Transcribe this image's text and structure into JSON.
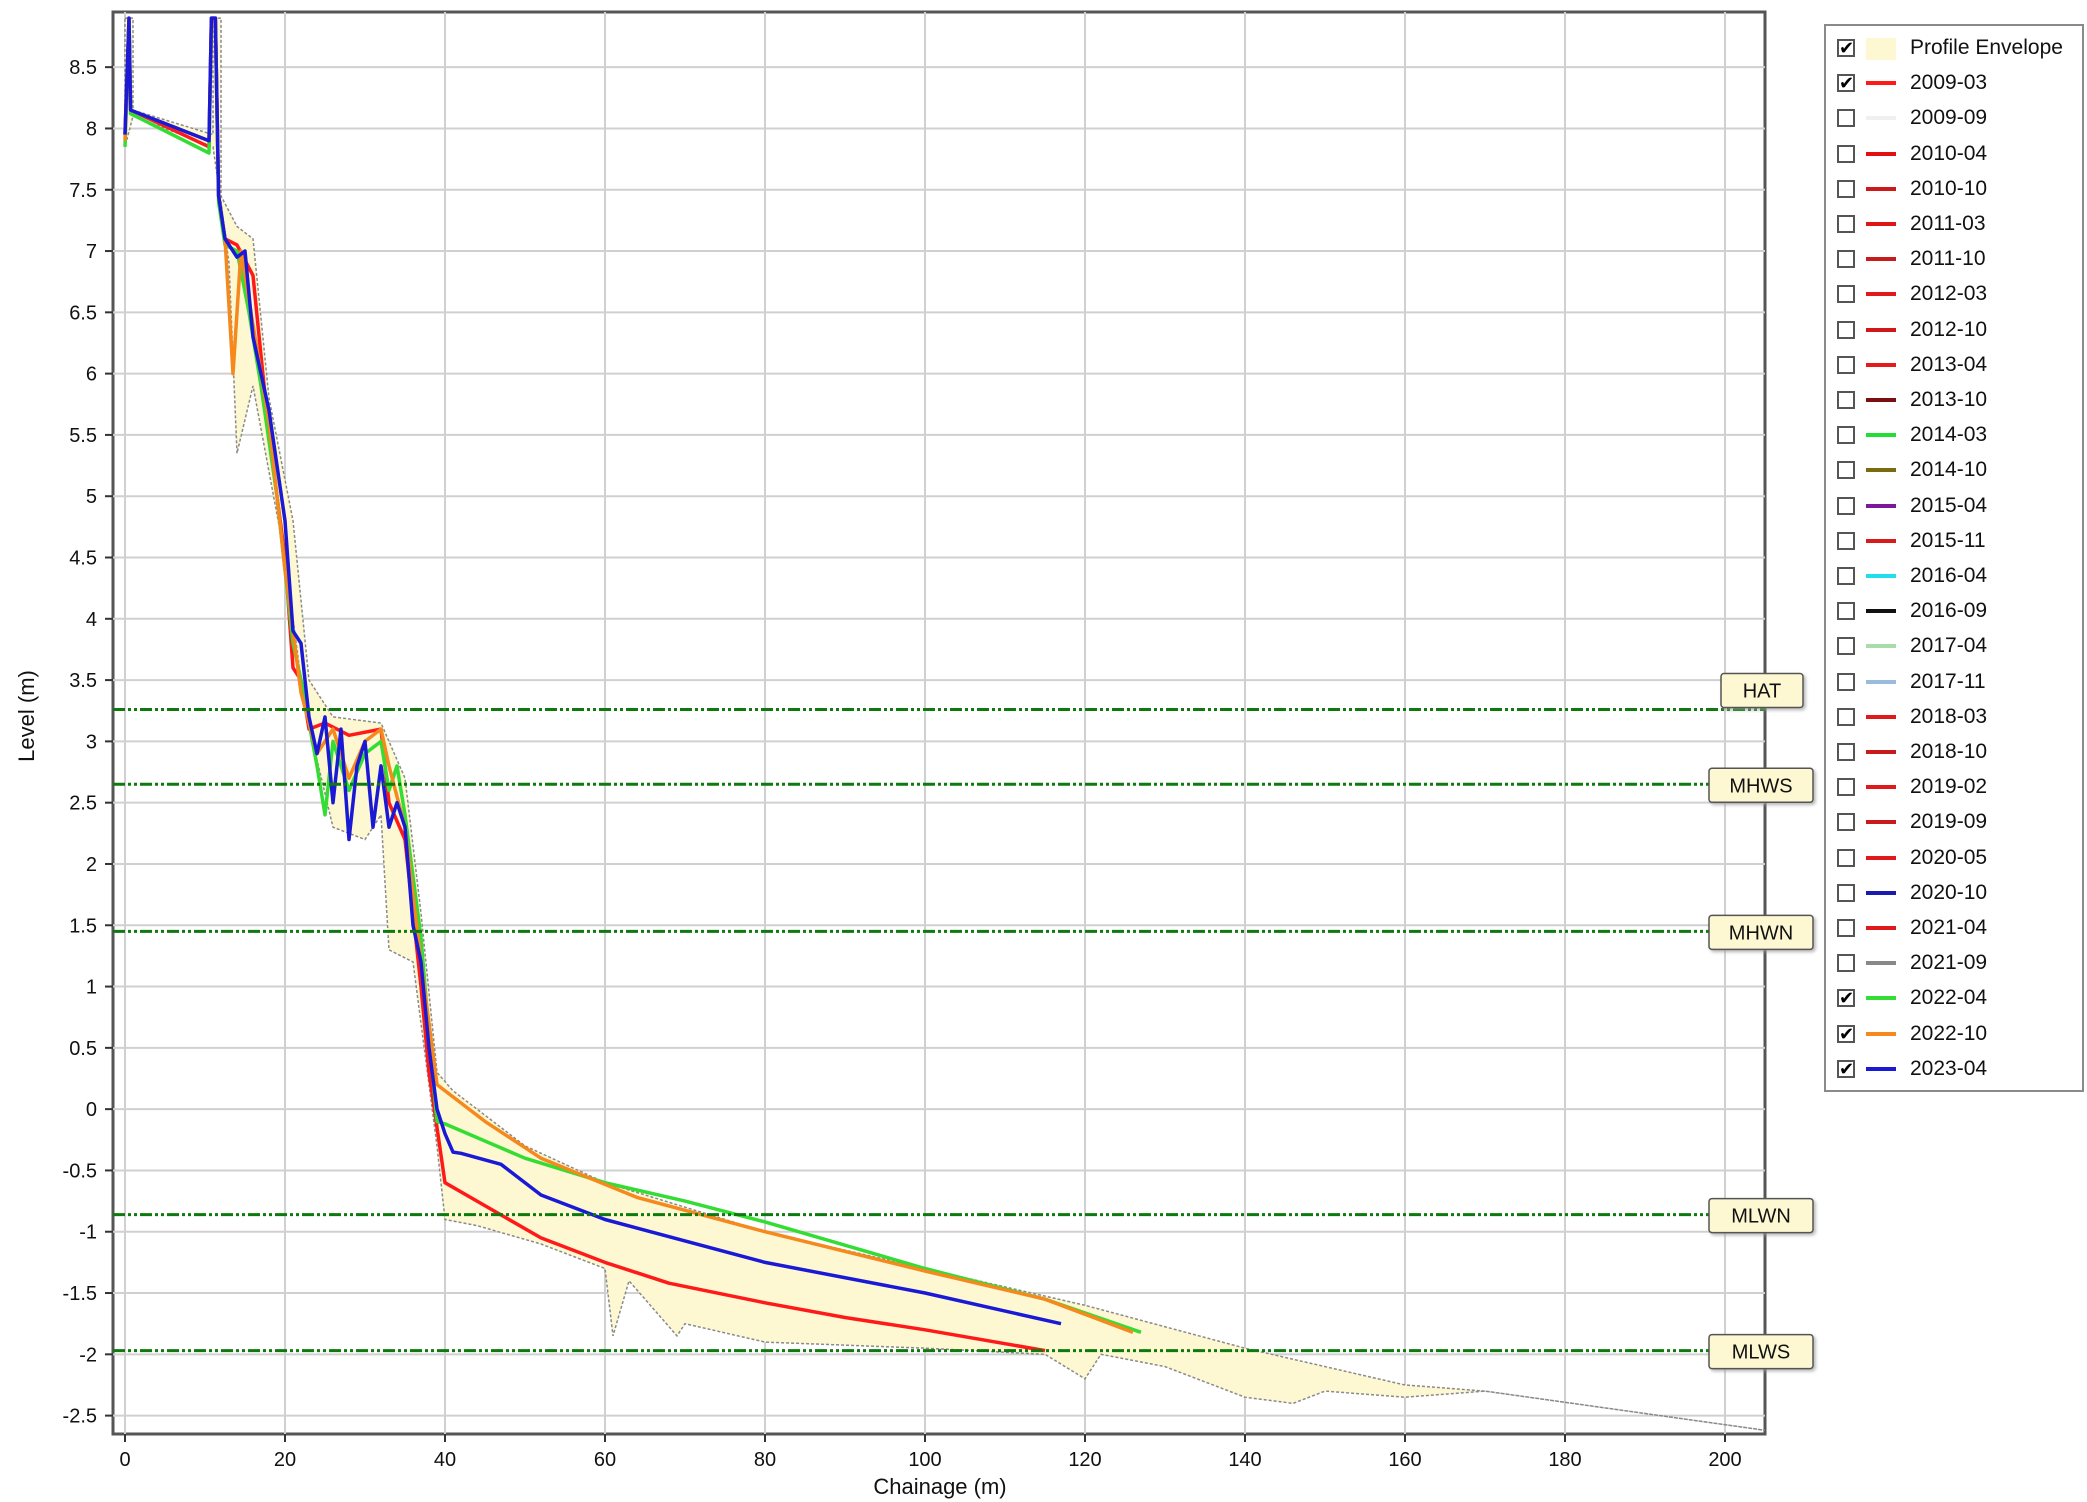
{
  "chart_data": {
    "type": "line",
    "title": "",
    "xlabel": "Chainage (m)",
    "ylabel": "Level (m)",
    "xlim": [
      -1.5,
      205
    ],
    "ylim": [
      -2.65,
      8.95
    ],
    "x_ticks": [
      0,
      20,
      40,
      60,
      80,
      100,
      120,
      140,
      160,
      180,
      200
    ],
    "y_ticks": [
      -2.5,
      -2,
      -1.5,
      -1,
      -0.5,
      0,
      0.5,
      1,
      1.5,
      2,
      2.5,
      3,
      3.5,
      4,
      4.5,
      5,
      5.5,
      6,
      6.5,
      7,
      7.5,
      8,
      8.5
    ],
    "grid": true,
    "legend_position": "right",
    "tide_lines": [
      {
        "name": "HAT",
        "level": 3.26
      },
      {
        "name": "MHWS",
        "level": 2.65
      },
      {
        "name": "MHWN",
        "level": 1.45
      },
      {
        "name": "MLWN",
        "level": -0.86
      },
      {
        "name": "MLWS",
        "level": -1.97
      }
    ],
    "envelope": {
      "name": "Profile Envelope",
      "upper": [
        [
          0,
          8.9
        ],
        [
          1,
          8.9
        ],
        [
          1,
          8.15
        ],
        [
          11,
          7.95
        ],
        [
          11,
          8.9
        ],
        [
          12,
          8.9
        ],
        [
          12,
          7.45
        ],
        [
          14,
          7.2
        ],
        [
          16,
          7.1
        ],
        [
          18,
          5.8
        ],
        [
          21,
          4.8
        ],
        [
          23,
          3.5
        ],
        [
          26,
          3.2
        ],
        [
          32,
          3.15
        ],
        [
          35,
          2.7
        ],
        [
          37,
          1.6
        ],
        [
          39,
          0.3
        ],
        [
          41,
          0.15
        ],
        [
          50,
          -0.3
        ],
        [
          60,
          -0.6
        ],
        [
          70,
          -0.8
        ],
        [
          80,
          -1.0
        ],
        [
          100,
          -1.3
        ],
        [
          120,
          -1.6
        ],
        [
          140,
          -1.95
        ],
        [
          160,
          -2.25
        ],
        [
          170,
          -2.3
        ],
        [
          205,
          -2.62
        ]
      ],
      "lower": [
        [
          205,
          -2.62
        ],
        [
          170,
          -2.3
        ],
        [
          160,
          -2.35
        ],
        [
          150,
          -2.3
        ],
        [
          146,
          -2.4
        ],
        [
          140,
          -2.35
        ],
        [
          130,
          -2.1
        ],
        [
          122,
          -2.0
        ],
        [
          120,
          -2.2
        ],
        [
          115,
          -2.0
        ],
        [
          100,
          -1.95
        ],
        [
          80,
          -1.9
        ],
        [
          70,
          -1.75
        ],
        [
          69,
          -1.85
        ],
        [
          63,
          -1.4
        ],
        [
          61,
          -1.85
        ],
        [
          60,
          -1.3
        ],
        [
          52,
          -1.1
        ],
        [
          44,
          -0.95
        ],
        [
          40,
          -0.9
        ],
        [
          39,
          -0.3
        ],
        [
          36,
          1.2
        ],
        [
          33,
          1.3
        ],
        [
          32,
          2.4
        ],
        [
          30,
          2.2
        ],
        [
          26,
          2.3
        ],
        [
          24,
          2.85
        ],
        [
          22,
          3.5
        ],
        [
          20,
          4.5
        ],
        [
          16,
          5.9
        ],
        [
          14,
          5.35
        ],
        [
          13,
          6.9
        ],
        [
          12,
          7.4
        ],
        [
          11,
          7.85
        ],
        [
          1,
          8.1
        ],
        [
          0,
          7.85
        ]
      ]
    },
    "series": [
      {
        "name": "2009-03",
        "color": "#ff1a1a",
        "points": [
          [
            0,
            7.95
          ],
          [
            0.5,
            8.9
          ],
          [
            0.7,
            8.15
          ],
          [
            10.5,
            7.85
          ],
          [
            10.8,
            8.9
          ],
          [
            11.3,
            8.9
          ],
          [
            11.7,
            7.45
          ],
          [
            12.5,
            7.1
          ],
          [
            14,
            7.05
          ],
          [
            16,
            6.8
          ],
          [
            18,
            5.5
          ],
          [
            20,
            4.5
          ],
          [
            21,
            3.6
          ],
          [
            22,
            3.5
          ],
          [
            23,
            3.1
          ],
          [
            25,
            3.15
          ],
          [
            28,
            3.05
          ],
          [
            32,
            3.1
          ],
          [
            33,
            2.5
          ],
          [
            35,
            2.2
          ],
          [
            37,
            1.0
          ],
          [
            38,
            0.3
          ],
          [
            40,
            -0.6
          ],
          [
            44,
            -0.75
          ],
          [
            52,
            -1.05
          ],
          [
            60,
            -1.25
          ],
          [
            68,
            -1.42
          ],
          [
            80,
            -1.58
          ],
          [
            90,
            -1.7
          ],
          [
            100,
            -1.8
          ],
          [
            115,
            -1.97
          ]
        ]
      },
      {
        "name": "2022-04",
        "color": "#33dd33",
        "points": [
          [
            0,
            7.85
          ],
          [
            0.5,
            8.85
          ],
          [
            0.7,
            8.12
          ],
          [
            10.5,
            7.8
          ],
          [
            10.8,
            8.85
          ],
          [
            11.3,
            8.85
          ],
          [
            11.7,
            7.4
          ],
          [
            12.5,
            7.05
          ],
          [
            14,
            7.0
          ],
          [
            15.5,
            6.5
          ],
          [
            17,
            5.9
          ],
          [
            19,
            5.0
          ],
          [
            21,
            3.8
          ],
          [
            22,
            3.5
          ],
          [
            24,
            2.8
          ],
          [
            25,
            2.4
          ],
          [
            26,
            3.0
          ],
          [
            28,
            2.6
          ],
          [
            30,
            2.9
          ],
          [
            32,
            3.0
          ],
          [
            33,
            2.6
          ],
          [
            34,
            2.8
          ],
          [
            35,
            2.4
          ],
          [
            37,
            1.4
          ],
          [
            38,
            0.6
          ],
          [
            39,
            -0.1
          ],
          [
            40,
            -0.12
          ],
          [
            50,
            -0.4
          ],
          [
            60,
            -0.6
          ],
          [
            70,
            -0.75
          ],
          [
            80,
            -0.92
          ],
          [
            100,
            -1.3
          ],
          [
            115,
            -1.55
          ],
          [
            127,
            -1.82
          ]
        ]
      },
      {
        "name": "2022-10",
        "color": "#f5891e",
        "points": [
          [
            0,
            7.9
          ],
          [
            0.5,
            8.85
          ],
          [
            0.7,
            8.15
          ],
          [
            10.5,
            7.9
          ],
          [
            10.8,
            8.85
          ],
          [
            11.3,
            8.85
          ],
          [
            11.7,
            7.45
          ],
          [
            12.5,
            7.1
          ],
          [
            13.5,
            6.0
          ],
          [
            14.5,
            7.0
          ],
          [
            16,
            6.4
          ],
          [
            18,
            5.6
          ],
          [
            20,
            4.4
          ],
          [
            21,
            3.9
          ],
          [
            22,
            3.4
          ],
          [
            24,
            2.9
          ],
          [
            26,
            3.1
          ],
          [
            28,
            2.7
          ],
          [
            30,
            3.0
          ],
          [
            32,
            3.1
          ],
          [
            33,
            2.8
          ],
          [
            35,
            2.3
          ],
          [
            37,
            1.2
          ],
          [
            39,
            0.2
          ],
          [
            40,
            0.15
          ],
          [
            45,
            -0.1
          ],
          [
            52,
            -0.4
          ],
          [
            64,
            -0.72
          ],
          [
            80,
            -1.0
          ],
          [
            100,
            -1.32
          ],
          [
            115,
            -1.55
          ],
          [
            126,
            -1.82
          ]
        ]
      },
      {
        "name": "2023-04",
        "color": "#1a1ad6",
        "points": [
          [
            0,
            7.95
          ],
          [
            0.5,
            8.9
          ],
          [
            0.7,
            8.15
          ],
          [
            10.5,
            7.9
          ],
          [
            10.8,
            8.9
          ],
          [
            11.3,
            8.9
          ],
          [
            11.7,
            7.45
          ],
          [
            12.5,
            7.1
          ],
          [
            14,
            6.95
          ],
          [
            15,
            7.0
          ],
          [
            16,
            6.3
          ],
          [
            18,
            5.7
          ],
          [
            20,
            4.8
          ],
          [
            21,
            3.9
          ],
          [
            22,
            3.8
          ],
          [
            23,
            3.2
          ],
          [
            24,
            2.9
          ],
          [
            25,
            3.2
          ],
          [
            26,
            2.5
          ],
          [
            27,
            3.1
          ],
          [
            28,
            2.2
          ],
          [
            29,
            2.8
          ],
          [
            30,
            3.0
          ],
          [
            31,
            2.3
          ],
          [
            32,
            2.8
          ],
          [
            33,
            2.3
          ],
          [
            34,
            2.5
          ],
          [
            35,
            2.3
          ],
          [
            36,
            1.5
          ],
          [
            37,
            1.2
          ],
          [
            38,
            0.5
          ],
          [
            39,
            0.0
          ],
          [
            40,
            -0.2
          ],
          [
            41,
            -0.35
          ],
          [
            42,
            -0.36
          ],
          [
            47,
            -0.45
          ],
          [
            52,
            -0.7
          ],
          [
            60,
            -0.9
          ],
          [
            80,
            -1.25
          ],
          [
            100,
            -1.5
          ],
          [
            117,
            -1.75
          ]
        ]
      }
    ],
    "legend": [
      {
        "label": "Profile Envelope",
        "checked": true,
        "color": "#fdf8d2",
        "kind": "area"
      },
      {
        "label": "2009-03",
        "checked": true,
        "color": "#ff1a1a"
      },
      {
        "label": "2009-09",
        "checked": false,
        "color": "#f0f0f0"
      },
      {
        "label": "2010-04",
        "checked": false,
        "color": "#e01010"
      },
      {
        "label": "2010-10",
        "checked": false,
        "color": "#cc1a1a"
      },
      {
        "label": "2011-03",
        "checked": false,
        "color": "#e01515"
      },
      {
        "label": "2011-10",
        "checked": false,
        "color": "#c81c1c"
      },
      {
        "label": "2012-03",
        "checked": false,
        "color": "#e01a1a"
      },
      {
        "label": "2012-10",
        "checked": false,
        "color": "#d01818"
      },
      {
        "label": "2013-04",
        "checked": false,
        "color": "#e51a1a"
      },
      {
        "label": "2013-10",
        "checked": false,
        "color": "#7a1010"
      },
      {
        "label": "2014-03",
        "checked": false,
        "color": "#22dd33"
      },
      {
        "label": "2014-10",
        "checked": false,
        "color": "#7a6a10"
      },
      {
        "label": "2015-04",
        "checked": false,
        "color": "#7a1a9a"
      },
      {
        "label": "2015-11",
        "checked": false,
        "color": "#d81a1a"
      },
      {
        "label": "2016-04",
        "checked": false,
        "color": "#22ddee"
      },
      {
        "label": "2016-09",
        "checked": false,
        "color": "#111111"
      },
      {
        "label": "2017-04",
        "checked": false,
        "color": "#a8dca8"
      },
      {
        "label": "2017-11",
        "checked": false,
        "color": "#99bbdd"
      },
      {
        "label": "2018-03",
        "checked": false,
        "color": "#e01a1a"
      },
      {
        "label": "2018-10",
        "checked": false,
        "color": "#c81a1a"
      },
      {
        "label": "2019-02",
        "checked": false,
        "color": "#e01a1a"
      },
      {
        "label": "2019-09",
        "checked": false,
        "color": "#c81a1a"
      },
      {
        "label": "2020-05",
        "checked": false,
        "color": "#e01a1a"
      },
      {
        "label": "2020-10",
        "checked": false,
        "color": "#1a1ab0"
      },
      {
        "label": "2021-04",
        "checked": false,
        "color": "#e01a1a"
      },
      {
        "label": "2021-09",
        "checked": false,
        "color": "#888888"
      },
      {
        "label": "2022-04",
        "checked": true,
        "color": "#33dd33"
      },
      {
        "label": "2022-10",
        "checked": true,
        "color": "#f5891e"
      },
      {
        "label": "2023-04",
        "checked": true,
        "color": "#1a1ad6"
      }
    ]
  }
}
